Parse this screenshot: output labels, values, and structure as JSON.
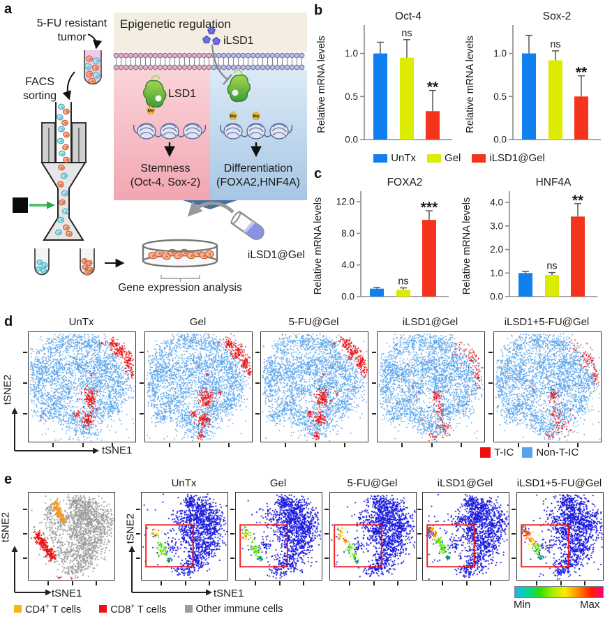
{
  "panels": {
    "a": "a",
    "b": "b",
    "c": "c",
    "d": "d",
    "e": "e"
  },
  "panel_a": {
    "tumor_line1": "5-FU resistant",
    "tumor_line2": "tumor",
    "facs_line1": "FACS",
    "facs_line2": "sorting",
    "epi_title": "Epigenetic regulation",
    "ilsd1_label": "iLSD1",
    "lsd1_label": "LSD1",
    "me_tag": "Me",
    "stemness_line1": "Stemness",
    "stemness_line2": "(Oct-4, Sox-2)",
    "diff_line1": "Differentiation",
    "diff_line2": "(FOXA2,HNF4A)",
    "gel_label": "iLSD1@Gel",
    "gene_label": "Gene expression analysis"
  },
  "legend_bc": [
    {
      "label": "UnTx",
      "color": "#1080F0"
    },
    {
      "label": "Gel",
      "color": "#DCEC00"
    },
    {
      "label": "iLSD1@Gel",
      "color": "#F5341C"
    }
  ],
  "chart_data": [
    {
      "type": "bar",
      "title": "Oct-4",
      "ylabel": "Relative mRNA levels",
      "categories": [
        "UnTx",
        "Gel",
        "iLSD1@Gel"
      ],
      "values": [
        1.0,
        0.95,
        0.33
      ],
      "errors": [
        0.13,
        0.21,
        0.24
      ],
      "sig": [
        "",
        "ns",
        "**"
      ],
      "yticks": [
        [
          0,
          "0.0"
        ],
        [
          0.5,
          "0.5"
        ],
        [
          1,
          "1.0"
        ]
      ],
      "ylim": [
        0,
        1.28
      ],
      "colors": [
        "#1080F0",
        "#DCEC00",
        "#F5341C"
      ]
    },
    {
      "type": "bar",
      "title": "Sox-2",
      "ylabel": "Relative mRNA levels",
      "categories": [
        "UnTx",
        "Gel",
        "iLSD1@Gel"
      ],
      "values": [
        1.0,
        0.92,
        0.5
      ],
      "errors": [
        0.21,
        0.11,
        0.24
      ],
      "sig": [
        "",
        "ns",
        "**"
      ],
      "yticks": [
        [
          0,
          "0.0"
        ],
        [
          0.5,
          "0.5"
        ],
        [
          1,
          "1.0"
        ]
      ],
      "ylim": [
        0,
        1.28
      ],
      "colors": [
        "#1080F0",
        "#DCEC00",
        "#F5341C"
      ]
    },
    {
      "type": "bar",
      "title": "FOXA2",
      "ylabel": "Relative mRNA levels",
      "categories": [
        "UnTx",
        "Gel",
        "iLSD1@Gel"
      ],
      "values": [
        1.0,
        0.85,
        9.7
      ],
      "errors": [
        0.15,
        0.25,
        1.15
      ],
      "sig": [
        "",
        "ns",
        "***"
      ],
      "yticks": [
        [
          0,
          "0.0"
        ],
        [
          4,
          "4.0"
        ],
        [
          8,
          "8.0"
        ],
        [
          12,
          "12.0"
        ]
      ],
      "ylim": [
        0,
        12.8
      ],
      "colors": [
        "#1080F0",
        "#DCEC00",
        "#F5341C"
      ]
    },
    {
      "type": "bar",
      "title": "HNF4A",
      "ylabel": "Relative mRNA levels",
      "categories": [
        "UnTx",
        "Gel",
        "iLSD1@Gel"
      ],
      "values": [
        1.0,
        0.92,
        3.4
      ],
      "errors": [
        0.07,
        0.1,
        0.55
      ],
      "sig": [
        "",
        "ns",
        "**"
      ],
      "yticks": [
        [
          0,
          "0.0"
        ],
        [
          1,
          "1.0"
        ],
        [
          2,
          "2.0"
        ],
        [
          3,
          "3.0"
        ],
        [
          4,
          "4.0"
        ]
      ],
      "ylim": [
        0,
        4.3
      ],
      "colors": [
        "#1080F0",
        "#DCEC00",
        "#F5341C"
      ]
    },
    {
      "type": "scatter",
      "panel": "d",
      "xlabel": "tSNE1",
      "ylabel": "tSNE2",
      "legend_items": [
        {
          "label": "T-IC",
          "color": "#EE0F0F"
        },
        {
          "label": "Non-T-IC",
          "color": "#57A3EC"
        }
      ],
      "point_colors": {
        "blue": "#57A3EC",
        "red": "#EE0F0F"
      },
      "base_blue": [
        [
          0.38,
          0.08,
          0.09,
          0.045,
          170
        ],
        [
          0.6,
          0.1,
          0.07,
          0.04,
          140
        ],
        [
          0.2,
          0.15,
          0.06,
          0.05,
          90
        ],
        [
          0.1,
          0.32,
          0.05,
          0.07,
          140
        ],
        [
          0.07,
          0.52,
          0.045,
          0.08,
          150
        ],
        [
          0.22,
          0.38,
          0.07,
          0.07,
          200
        ],
        [
          0.47,
          0.3,
          0.12,
          0.07,
          330
        ],
        [
          0.72,
          0.28,
          0.08,
          0.07,
          230
        ],
        [
          0.85,
          0.45,
          0.06,
          0.09,
          210
        ],
        [
          0.6,
          0.48,
          0.09,
          0.06,
          260
        ],
        [
          0.35,
          0.52,
          0.05,
          0.05,
          100
        ],
        [
          0.25,
          0.65,
          0.07,
          0.06,
          170
        ],
        [
          0.15,
          0.75,
          0.05,
          0.04,
          90
        ],
        [
          0.38,
          0.78,
          0.06,
          0.05,
          120
        ],
        [
          0.62,
          0.72,
          0.08,
          0.06,
          190
        ],
        [
          0.52,
          0.88,
          0.08,
          0.045,
          140
        ],
        [
          0.78,
          0.65,
          0.05,
          0.05,
          110
        ],
        [
          0.5,
          0.5,
          0.3,
          0.28,
          300
        ]
      ],
      "red_sets": {
        "A": [
          [
            0.79,
            0.1,
            0.025,
            0.03,
            60
          ],
          [
            0.86,
            0.18,
            0.03,
            0.035,
            90
          ],
          [
            0.93,
            0.27,
            0.02,
            0.04,
            70
          ],
          [
            0.97,
            0.36,
            0.012,
            0.03,
            25
          ],
          [
            0.57,
            0.6,
            0.035,
            0.045,
            130
          ],
          [
            0.55,
            0.79,
            0.03,
            0.035,
            90
          ],
          [
            0.45,
            0.74,
            0.013,
            0.018,
            22
          ],
          [
            0.58,
            0.38,
            0.008,
            0.01,
            6
          ],
          [
            0.68,
            0.1,
            0.006,
            0.008,
            4
          ]
        ],
        "A2": [
          [
            0.52,
            0.94,
            0.014,
            0.02,
            28
          ],
          [
            0.7,
            0.55,
            0.01,
            0.012,
            8
          ]
        ],
        "B": [
          [
            0.88,
            0.25,
            0.035,
            0.05,
            45
          ],
          [
            0.94,
            0.4,
            0.02,
            0.06,
            30
          ],
          [
            0.75,
            0.15,
            0.04,
            0.03,
            18
          ],
          [
            0.55,
            0.57,
            0.022,
            0.028,
            45
          ],
          [
            0.57,
            0.72,
            0.03,
            0.05,
            35
          ],
          [
            0.62,
            0.85,
            0.035,
            0.05,
            40
          ],
          [
            0.52,
            0.95,
            0.02,
            0.02,
            12
          ],
          [
            0.35,
            0.55,
            0.2,
            0.2,
            10
          ]
        ]
      },
      "plots": [
        {
          "title": "UnTx",
          "seed": 11,
          "red": [
            "A"
          ]
        },
        {
          "title": "Gel",
          "seed": 22,
          "red": [
            "A",
            "A2"
          ]
        },
        {
          "title": "5-FU@Gel",
          "seed": 33,
          "red": [
            "A",
            "A2"
          ]
        },
        {
          "title": "iLSD1@Gel",
          "seed": 44,
          "red": [
            "B"
          ]
        },
        {
          "title": "iLSD1+5-FU@Gel",
          "seed": 55,
          "red": [
            "B"
          ]
        }
      ]
    },
    {
      "type": "scatter",
      "panel": "e",
      "xlabel": "tSNE1",
      "ylabel": "tSNE2",
      "legend_items": [
        {
          "pre": "CD4",
          "sup": "+",
          "post": " T cells",
          "color": "#FBB31A"
        },
        {
          "pre": "CD8",
          "sup": "+",
          "post": " T cells",
          "color": "#EE1111"
        },
        {
          "label": "Other immune cells",
          "color": "#9C9C9C"
        }
      ],
      "colorbar": {
        "min": "Min",
        "max": "Max",
        "gradient": [
          "#18B4F0",
          "#00D8A0",
          "#30E000",
          "#A8F000",
          "#FFE800",
          "#FF9000",
          "#FF2000",
          "#FF0078"
        ]
      },
      "point_colors": {
        "blue": "#1A1AE0",
        "gray": "#9C9C9C",
        "orange": "#F2941C",
        "red": "#EC1111"
      },
      "gate_rect": [
        0.05,
        0.37,
        0.55,
        0.48
      ],
      "gate_color": "#EE1111",
      "palettes": {
        "warm": [
          "#FF2000",
          "#FF7800",
          "#FFC000",
          "#F0E800",
          "#FF4400"
        ],
        "grn": [
          "#30D800",
          "#58E818",
          "#88EE00",
          "#18C028",
          "#A8F000"
        ],
        "teal": [
          "#009078",
          "#00A890",
          "#007858",
          "#109060"
        ],
        "mix": [
          "#FF3000",
          "#FFB000",
          "#C8E800",
          "#40D800",
          "#F0F000"
        ],
        "cool": [
          "#1818E0",
          "#2040F0",
          "#FF3000",
          "#FF9800",
          "#30C8F0"
        ]
      },
      "ref": {
        "seed": 7,
        "gray": [
          [
            0.55,
            0.1,
            0.05,
            0.045,
            90
          ],
          [
            0.7,
            0.14,
            0.07,
            0.05,
            110
          ],
          [
            0.62,
            0.28,
            0.07,
            0.07,
            180
          ],
          [
            0.8,
            0.35,
            0.09,
            0.1,
            300
          ],
          [
            0.55,
            0.45,
            0.06,
            0.08,
            130
          ],
          [
            0.72,
            0.6,
            0.09,
            0.08,
            220
          ],
          [
            0.62,
            0.78,
            0.07,
            0.06,
            120
          ],
          [
            0.5,
            0.88,
            0.06,
            0.04,
            60
          ],
          [
            0.42,
            0.3,
            0.05,
            0.06,
            50
          ],
          [
            0.3,
            0.4,
            0.06,
            0.08,
            80
          ],
          [
            0.25,
            0.2,
            0.05,
            0.05,
            50
          ],
          [
            0.4,
            0.7,
            0.08,
            0.06,
            90
          ],
          [
            0.5,
            0.5,
            0.28,
            0.28,
            120
          ]
        ],
        "orange": [
          [
            0.31,
            0.14,
            0.022,
            0.03,
            45
          ],
          [
            0.35,
            0.22,
            0.02,
            0.03,
            45
          ],
          [
            0.39,
            0.3,
            0.016,
            0.025,
            30
          ]
        ],
        "red": [
          [
            0.1,
            0.5,
            0.025,
            0.035,
            60
          ],
          [
            0.16,
            0.58,
            0.025,
            0.035,
            70
          ],
          [
            0.22,
            0.66,
            0.025,
            0.03,
            60
          ],
          [
            0.27,
            0.72,
            0.02,
            0.025,
            40
          ],
          [
            0.35,
            0.97,
            0.006,
            0.006,
            3
          ],
          [
            0.5,
            0.98,
            0.005,
            0.005,
            2
          ]
        ]
      },
      "base_blue": [
        [
          0.55,
          0.1,
          0.05,
          0.045,
          90
        ],
        [
          0.7,
          0.14,
          0.07,
          0.05,
          110
        ],
        [
          0.62,
          0.28,
          0.07,
          0.07,
          180
        ],
        [
          0.8,
          0.35,
          0.09,
          0.1,
          300
        ],
        [
          0.55,
          0.45,
          0.06,
          0.08,
          130
        ],
        [
          0.72,
          0.6,
          0.09,
          0.08,
          220
        ],
        [
          0.62,
          0.78,
          0.07,
          0.06,
          120
        ],
        [
          0.5,
          0.88,
          0.06,
          0.04,
          60
        ],
        [
          0.42,
          0.3,
          0.05,
          0.06,
          50
        ],
        [
          0.35,
          0.6,
          0.05,
          0.05,
          30
        ],
        [
          0.5,
          0.5,
          0.28,
          0.28,
          120
        ]
      ],
      "plots": [
        {
          "title": "UnTx",
          "seed": 61,
          "rainbow": [
            [
              0.13,
              0.44,
              0.012,
              0.02,
              8,
              "warm"
            ],
            [
              0.17,
              0.5,
              0.015,
              0.025,
              8,
              "mix"
            ],
            [
              0.21,
              0.58,
              0.02,
              0.03,
              14,
              "grn"
            ],
            [
              0.25,
              0.66,
              0.022,
              0.028,
              30,
              "grn"
            ],
            [
              0.31,
              0.76,
              0.015,
              0.015,
              16,
              "teal"
            ],
            [
              0.2,
              0.52,
              0.05,
              0.08,
              8,
              "grn"
            ]
          ]
        },
        {
          "title": "Gel",
          "seed": 62,
          "rainbow": [
            [
              0.1,
              0.42,
              0.012,
              0.03,
              12,
              "grn"
            ],
            [
              0.09,
              0.5,
              0.013,
              0.02,
              10,
              "warm"
            ],
            [
              0.14,
              0.47,
              0.015,
              0.02,
              8,
              "mix"
            ],
            [
              0.18,
              0.57,
              0.02,
              0.03,
              16,
              "grn"
            ],
            [
              0.23,
              0.66,
              0.025,
              0.03,
              35,
              "grn"
            ],
            [
              0.28,
              0.75,
              0.015,
              0.014,
              15,
              "teal"
            ]
          ]
        },
        {
          "title": "5-FU@Gel",
          "seed": 63,
          "rainbow": [
            [
              0.12,
              0.42,
              0.015,
              0.025,
              10,
              "mix"
            ],
            [
              0.1,
              0.5,
              0.015,
              0.02,
              12,
              "warm"
            ],
            [
              0.17,
              0.52,
              0.018,
              0.025,
              10,
              "warm"
            ],
            [
              0.22,
              0.62,
              0.025,
              0.03,
              30,
              "grn"
            ],
            [
              0.27,
              0.72,
              0.02,
              0.02,
              18,
              "grn"
            ],
            [
              0.3,
              0.78,
              0.012,
              0.012,
              10,
              "teal"
            ]
          ]
        },
        {
          "title": "iLSD1@Gel",
          "seed": 64,
          "rainbow": [
            [
              0.07,
              0.44,
              0.02,
              0.035,
              40,
              "cool"
            ],
            [
              0.1,
              0.42,
              0.015,
              0.02,
              15,
              "warm"
            ],
            [
              0.13,
              0.48,
              0.02,
              0.025,
              20,
              "warm"
            ],
            [
              0.18,
              0.55,
              0.022,
              0.03,
              25,
              "grn"
            ],
            [
              0.23,
              0.64,
              0.025,
              0.03,
              40,
              "grn"
            ],
            [
              0.28,
              0.73,
              0.015,
              0.015,
              18,
              "teal"
            ]
          ]
        },
        {
          "title": "iLSD1+5-FU@Gel",
          "seed": 65,
          "rainbow": [
            [
              0.08,
              0.42,
              0.015,
              0.03,
              25,
              "cool"
            ],
            [
              0.12,
              0.46,
              0.018,
              0.025,
              25,
              "warm"
            ],
            [
              0.17,
              0.54,
              0.02,
              0.028,
              22,
              "warm"
            ],
            [
              0.22,
              0.63,
              0.025,
              0.03,
              35,
              "grn"
            ],
            [
              0.27,
              0.73,
              0.018,
              0.018,
              20,
              "teal"
            ]
          ]
        }
      ]
    }
  ]
}
